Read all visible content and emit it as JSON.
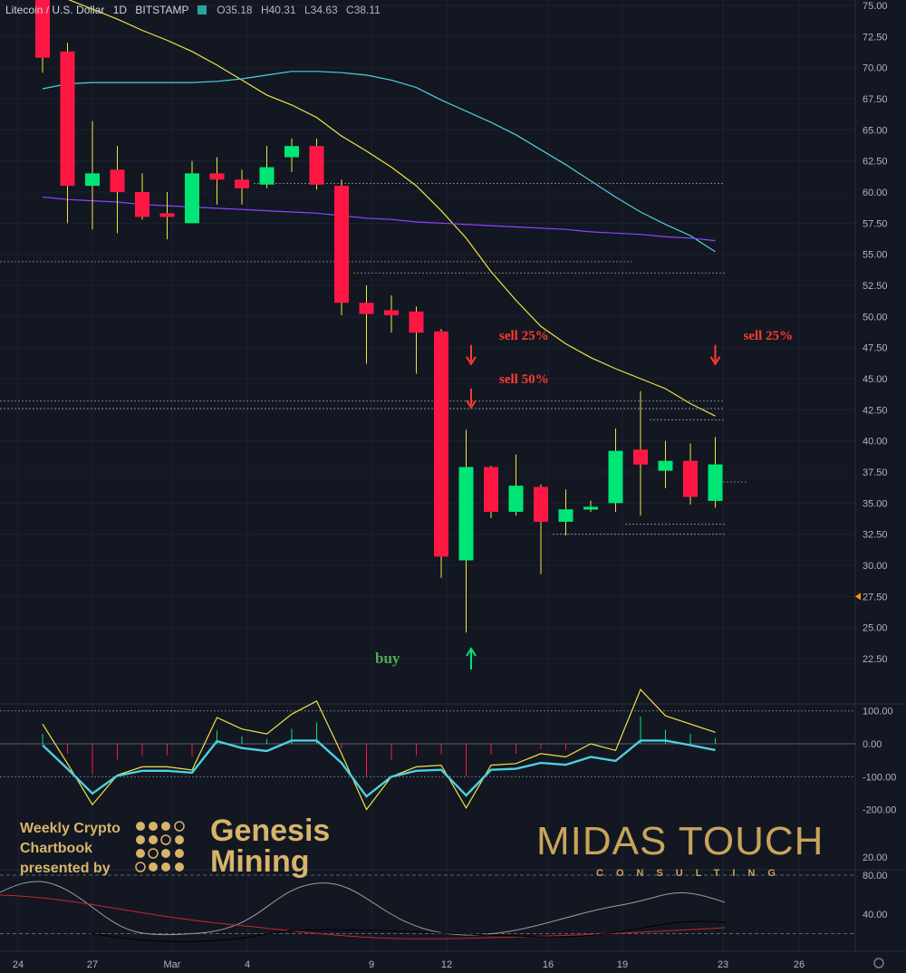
{
  "header": {
    "symbol": "Litecoin / U.S. Dollar",
    "interval": "1D",
    "exchange": "BITSTAMP",
    "open": "O35.18",
    "high": "H40.31",
    "low": "L34.63",
    "close": "C38.11"
  },
  "chart_data": {
    "type": "candlestick",
    "y_ticks": [
      "75.00",
      "72.50",
      "70.00",
      "67.50",
      "65.00",
      "62.50",
      "60.00",
      "57.50",
      "55.00",
      "52.50",
      "50.00",
      "47.50",
      "45.00",
      "42.50",
      "40.00",
      "37.50",
      "35.00",
      "32.50",
      "30.00",
      "27.50",
      "25.00",
      "22.50"
    ],
    "ylim": [
      21.0,
      75.5
    ],
    "x_tick_labels": [
      "24",
      "27",
      "Mar",
      "4",
      "9",
      "12",
      "16",
      "19",
      "23",
      "26"
    ],
    "candles": [
      {
        "i": 0,
        "o": 76.0,
        "h": 78.0,
        "l": 69.6,
        "c": 70.8
      },
      {
        "i": 1,
        "o": 71.3,
        "h": 72.0,
        "l": 57.5,
        "c": 60.5
      },
      {
        "i": 2,
        "o": 60.5,
        "h": 65.7,
        "l": 57.0,
        "c": 61.5
      },
      {
        "i": 3,
        "o": 61.8,
        "h": 63.7,
        "l": 56.7,
        "c": 60.0
      },
      {
        "i": 4,
        "o": 60.0,
        "h": 61.5,
        "l": 57.8,
        "c": 58.0
      },
      {
        "i": 5,
        "o": 58.3,
        "h": 60.0,
        "l": 56.2,
        "c": 58.0
      },
      {
        "i": 6,
        "o": 57.5,
        "h": 62.5,
        "l": 57.5,
        "c": 61.5
      },
      {
        "i": 7,
        "o": 61.5,
        "h": 62.8,
        "l": 59.0,
        "c": 61.0
      },
      {
        "i": 8,
        "o": 61.0,
        "h": 61.8,
        "l": 59.0,
        "c": 60.3
      },
      {
        "i": 9,
        "o": 60.6,
        "h": 63.7,
        "l": 60.3,
        "c": 62.0
      },
      {
        "i": 10,
        "o": 62.8,
        "h": 64.3,
        "l": 61.6,
        "c": 63.7
      },
      {
        "i": 11,
        "o": 63.7,
        "h": 64.3,
        "l": 60.2,
        "c": 60.6
      },
      {
        "i": 12,
        "o": 60.5,
        "h": 61.0,
        "l": 50.1,
        "c": 51.1
      },
      {
        "i": 13,
        "o": 51.1,
        "h": 52.5,
        "l": 46.2,
        "c": 50.2
      },
      {
        "i": 14,
        "o": 50.5,
        "h": 51.7,
        "l": 48.7,
        "c": 50.1
      },
      {
        "i": 15,
        "o": 50.4,
        "h": 50.8,
        "l": 45.4,
        "c": 48.7
      },
      {
        "i": 16,
        "o": 48.8,
        "h": 49.0,
        "l": 29.0,
        "c": 30.7
      },
      {
        "i": 17,
        "o": 30.4,
        "h": 40.9,
        "l": 24.6,
        "c": 37.9
      },
      {
        "i": 18,
        "o": 37.9,
        "h": 38.0,
        "l": 33.8,
        "c": 34.3
      },
      {
        "i": 19,
        "o": 34.3,
        "h": 38.9,
        "l": 34.0,
        "c": 36.4
      },
      {
        "i": 20,
        "o": 36.3,
        "h": 36.5,
        "l": 29.3,
        "c": 33.5
      },
      {
        "i": 21,
        "o": 33.5,
        "h": 36.1,
        "l": 32.4,
        "c": 34.5
      },
      {
        "i": 22,
        "o": 34.5,
        "h": 35.2,
        "l": 34.3,
        "c": 34.7
      },
      {
        "i": 23,
        "o": 35.0,
        "h": 41.0,
        "l": 34.3,
        "c": 39.2
      },
      {
        "i": 24,
        "o": 39.3,
        "h": 44.0,
        "l": 34.0,
        "c": 38.1
      },
      {
        "i": 25,
        "o": 37.6,
        "h": 40.0,
        "l": 36.2,
        "c": 38.4
      },
      {
        "i": 26,
        "o": 38.4,
        "h": 39.8,
        "l": 34.9,
        "c": 35.5
      },
      {
        "i": 27,
        "o": 35.18,
        "h": 40.31,
        "l": 34.63,
        "c": 38.11
      }
    ],
    "series": [
      {
        "color": "#f0e442",
        "values": [
          [
            0,
            77.5
          ],
          [
            1,
            75.5
          ],
          [
            2,
            74.7
          ],
          [
            3,
            73.9
          ],
          [
            4,
            73.0
          ],
          [
            5,
            72.2
          ],
          [
            6,
            71.3
          ],
          [
            7,
            70.2
          ],
          [
            8,
            69.0
          ],
          [
            9,
            67.8
          ],
          [
            10,
            67.0
          ],
          [
            11,
            66.0
          ],
          [
            12,
            64.5
          ],
          [
            13,
            63.3
          ],
          [
            14,
            62.0
          ],
          [
            15,
            60.5
          ],
          [
            16,
            58.5
          ],
          [
            17,
            56.3
          ],
          [
            18,
            53.6
          ],
          [
            19,
            51.3
          ],
          [
            20,
            49.2
          ],
          [
            21,
            47.8
          ],
          [
            22,
            46.7
          ],
          [
            23,
            45.8
          ],
          [
            24,
            45.0
          ],
          [
            25,
            44.2
          ],
          [
            26,
            43.0
          ],
          [
            27,
            42.0
          ]
        ]
      },
      {
        "color": "#4dd0e1",
        "values": [
          [
            0,
            68.3
          ],
          [
            1,
            68.7
          ],
          [
            2,
            68.8
          ],
          [
            3,
            68.8
          ],
          [
            4,
            68.8
          ],
          [
            5,
            68.8
          ],
          [
            6,
            68.8
          ],
          [
            7,
            68.9
          ],
          [
            8,
            69.1
          ],
          [
            9,
            69.4
          ],
          [
            10,
            69.7
          ],
          [
            11,
            69.7
          ],
          [
            12,
            69.6
          ],
          [
            13,
            69.4
          ],
          [
            14,
            69.0
          ],
          [
            15,
            68.4
          ],
          [
            16,
            67.4
          ],
          [
            17,
            66.5
          ],
          [
            18,
            65.6
          ],
          [
            19,
            64.6
          ],
          [
            20,
            63.4
          ],
          [
            21,
            62.2
          ],
          [
            22,
            60.9
          ],
          [
            23,
            59.6
          ],
          [
            24,
            58.4
          ],
          [
            25,
            57.4
          ],
          [
            26,
            56.5
          ],
          [
            27,
            55.2
          ]
        ]
      },
      {
        "color": "#8e44ff",
        "values": [
          [
            0,
            59.6
          ],
          [
            1,
            59.4
          ],
          [
            2,
            59.3
          ],
          [
            3,
            59.2
          ],
          [
            4,
            59.0
          ],
          [
            5,
            58.9
          ],
          [
            6,
            58.8
          ],
          [
            7,
            58.7
          ],
          [
            8,
            58.6
          ],
          [
            9,
            58.5
          ],
          [
            10,
            58.4
          ],
          [
            11,
            58.3
          ],
          [
            12,
            58.1
          ],
          [
            13,
            57.9
          ],
          [
            14,
            57.8
          ],
          [
            15,
            57.6
          ],
          [
            16,
            57.5
          ],
          [
            17,
            57.4
          ],
          [
            18,
            57.3
          ],
          [
            19,
            57.2
          ],
          [
            20,
            57.1
          ],
          [
            21,
            57.0
          ],
          [
            22,
            56.8
          ],
          [
            23,
            56.7
          ],
          [
            24,
            56.6
          ],
          [
            25,
            56.4
          ],
          [
            26,
            56.3
          ],
          [
            27,
            56.1
          ]
        ]
      }
    ],
    "annotations": [
      {
        "text": "sell 25%",
        "i": 17.2,
        "y": 48.0,
        "color": "#ff3b30",
        "arrow": "down"
      },
      {
        "text": "sell 50%",
        "i": 17.2,
        "y": 44.5,
        "color": "#ff3b30",
        "arrow": "down"
      },
      {
        "text": "sell 25%",
        "i": 27.0,
        "y": 48.0,
        "color": "#ff3b30",
        "arrow": "down"
      },
      {
        "text": "buy",
        "i": 17.2,
        "y": 22.5,
        "color": "#00e676",
        "arrow": "up"
      }
    ],
    "cci": {
      "y_ticks": [
        "100.00",
        "0.00",
        "-100.00",
        "-200.00"
      ],
      "values": [
        [
          0,
          60
        ],
        [
          1,
          -60
        ],
        [
          2,
          -185
        ],
        [
          3,
          -95
        ],
        [
          4,
          -70
        ],
        [
          5,
          -70
        ],
        [
          6,
          -80
        ],
        [
          7,
          80
        ],
        [
          8,
          45
        ],
        [
          9,
          30
        ],
        [
          10,
          90
        ],
        [
          11,
          130
        ],
        [
          12,
          -30
        ],
        [
          13,
          -200
        ],
        [
          14,
          -100
        ],
        [
          15,
          -70
        ],
        [
          16,
          -65
        ],
        [
          17,
          -195
        ],
        [
          18,
          -65
        ],
        [
          19,
          -60
        ],
        [
          20,
          -30
        ],
        [
          21,
          -40
        ],
        [
          22,
          0
        ],
        [
          23,
          -20
        ],
        [
          24,
          165
        ],
        [
          25,
          85
        ],
        [
          26,
          60
        ],
        [
          27,
          35
        ]
      ]
    },
    "osc": {
      "y_ticks": [
        "80.00",
        "40.00",
        "20.00"
      ]
    }
  },
  "branding": {
    "promo_line1": "Weekly Crypto",
    "promo_line2": "Chartbook",
    "promo_line3": "presented by",
    "genesis1": "Genesis",
    "genesis2": "Mining",
    "midas": "MIDAS TOUCH",
    "consulting": "CONSULTING"
  }
}
